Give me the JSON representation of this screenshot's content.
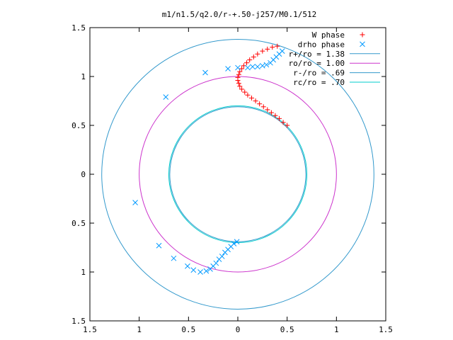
{
  "chart_data": {
    "type": "scatter",
    "title": "m1/n1.5/q2.0/r-+.50-j257/M0.1/512",
    "xlim": [
      -1.5,
      1.5
    ],
    "ylim": [
      -1.5,
      1.5
    ],
    "xticks": [
      -1.5,
      -1,
      -0.5,
      0,
      0.5,
      1,
      1.5
    ],
    "yticks": [
      -1.5,
      -1,
      -0.5,
      0,
      0.5,
      1,
      1.5
    ],
    "xtick_labels": [
      "1.5",
      "1",
      "0.5",
      "0",
      "0.5",
      "1",
      "1.5"
    ],
    "ytick_labels": [
      "1.5",
      "1",
      "0.5",
      "0",
      "0.5",
      "1",
      "1.5"
    ],
    "grid": false,
    "legend_position": "top-right",
    "series": [
      {
        "name": "W phase",
        "marker": "+",
        "color": "#ff0000",
        "points": [
          [
            0.5,
            0.5
          ],
          [
            0.46,
            0.53
          ],
          [
            0.42,
            0.57
          ],
          [
            0.38,
            0.6
          ],
          [
            0.34,
            0.63
          ],
          [
            0.3,
            0.66
          ],
          [
            0.26,
            0.69
          ],
          [
            0.22,
            0.72
          ],
          [
            0.18,
            0.75
          ],
          [
            0.14,
            0.78
          ],
          [
            0.1,
            0.81
          ],
          [
            0.07,
            0.84
          ],
          [
            0.04,
            0.87
          ],
          [
            0.02,
            0.9
          ],
          [
            0.01,
            0.93
          ],
          [
            0.0,
            0.96
          ],
          [
            0.0,
            0.99
          ],
          [
            0.01,
            1.02
          ],
          [
            0.02,
            1.05
          ],
          [
            0.04,
            1.08
          ],
          [
            0.06,
            1.11
          ],
          [
            0.09,
            1.14
          ],
          [
            0.12,
            1.17
          ],
          [
            0.16,
            1.2
          ],
          [
            0.2,
            1.23
          ],
          [
            0.25,
            1.26
          ],
          [
            0.3,
            1.28
          ],
          [
            0.35,
            1.3
          ],
          [
            0.4,
            1.31
          ]
        ]
      },
      {
        "name": "drho phase",
        "marker": "x",
        "color": "#0099ff",
        "points": [
          [
            0.45,
            1.26
          ],
          [
            0.42,
            1.23
          ],
          [
            0.39,
            1.2
          ],
          [
            0.36,
            1.17
          ],
          [
            0.33,
            1.14
          ],
          [
            0.29,
            1.12
          ],
          [
            0.25,
            1.11
          ],
          [
            0.2,
            1.1
          ],
          [
            0.15,
            1.1
          ],
          [
            0.1,
            1.09
          ],
          [
            0.0,
            1.09
          ],
          [
            -0.1,
            1.08
          ],
          [
            -0.33,
            1.04
          ],
          [
            -0.73,
            0.79
          ],
          [
            -1.04,
            -0.29
          ],
          [
            -0.8,
            -0.73
          ],
          [
            -0.65,
            -0.86
          ],
          [
            -0.51,
            -0.94
          ],
          [
            -0.45,
            -0.98
          ],
          [
            -0.38,
            -1.0
          ],
          [
            -0.32,
            -0.99
          ],
          [
            -0.28,
            -0.97
          ],
          [
            -0.25,
            -0.94
          ],
          [
            -0.22,
            -0.91
          ],
          [
            -0.19,
            -0.87
          ],
          [
            -0.16,
            -0.84
          ],
          [
            -0.13,
            -0.8
          ],
          [
            -0.1,
            -0.77
          ],
          [
            -0.07,
            -0.74
          ],
          [
            -0.04,
            -0.71
          ],
          [
            -0.01,
            -0.69
          ]
        ]
      },
      {
        "name": "r+/ro = 1.38",
        "kind": "circle",
        "radius": 1.38,
        "color": "#3399cc"
      },
      {
        "name": "ro/ro = 1.00",
        "kind": "circle",
        "radius": 1.0,
        "color": "#cc33cc"
      },
      {
        "name": "r-/ro = .69",
        "kind": "circle",
        "radius": 0.69,
        "color": "#3399cc"
      },
      {
        "name": "rc/ro = .70",
        "kind": "circle",
        "radius": 0.7,
        "color": "#00cccc"
      }
    ]
  }
}
